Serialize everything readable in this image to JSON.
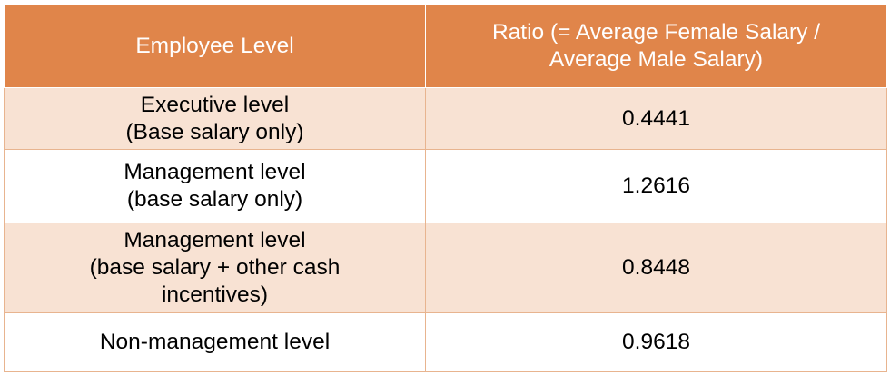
{
  "table": {
    "headers": [
      "Employee Level",
      "Ratio (= Average Female Salary /\nAverage Male Salary)"
    ],
    "rows": [
      {
        "level": "Executive level\n(Base salary only)",
        "ratio": "0.4441"
      },
      {
        "level": "Management level\n (base salary only)",
        "ratio": "1.2616"
      },
      {
        "level": "Management level\n(base salary + other cash\nincentives)",
        "ratio": "0.8448"
      },
      {
        "level": "Non-management level",
        "ratio": "0.9618"
      }
    ]
  },
  "colors": {
    "header_bg": "#e0854a",
    "row_shaded": "#f8e2d3",
    "row_plain": "#ffffff",
    "border": "#e8b48f"
  }
}
